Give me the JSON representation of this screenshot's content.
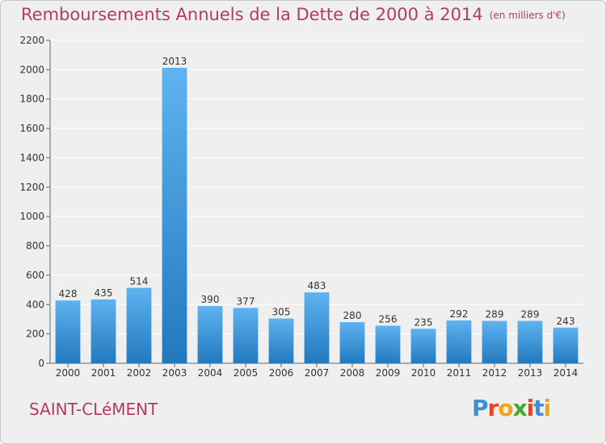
{
  "header": {
    "title": "Remboursements Annuels de la Dette de 2000 à 2014",
    "unit": "(en milliers d'€)"
  },
  "footer": {
    "commune": "SAINT-CLéMENT",
    "logo_letters": [
      "P",
      "r",
      "o",
      "x",
      "i",
      "t",
      "i"
    ],
    "logo_colors": [
      "#3a8fd6",
      "#e2452c",
      "#f2a31b",
      "#45a834",
      "#e2452c",
      "#3a8fd6",
      "#f2a31b"
    ]
  },
  "colors": {
    "title": "#b43c64",
    "bar_top": "#5eb3f0",
    "bar_bottom": "#2279be",
    "grid": "#ffffff",
    "axis": "#666666"
  },
  "chart_data": {
    "type": "bar",
    "categories": [
      "2000",
      "2001",
      "2002",
      "2003",
      "2004",
      "2005",
      "2006",
      "2007",
      "2008",
      "2009",
      "2010",
      "2011",
      "2012",
      "2013",
      "2014"
    ],
    "values": [
      428,
      435,
      514,
      2013,
      390,
      377,
      305,
      483,
      280,
      256,
      235,
      292,
      289,
      289,
      243
    ],
    "title": "Remboursements Annuels de la Dette de 2000 à 2014",
    "xlabel": "",
    "ylabel": "",
    "ylim": [
      0,
      2200
    ],
    "yticks": [
      0,
      200,
      400,
      600,
      800,
      1000,
      1200,
      1400,
      1600,
      1800,
      2000,
      2200
    ],
    "grid": true,
    "data_labels": true
  }
}
